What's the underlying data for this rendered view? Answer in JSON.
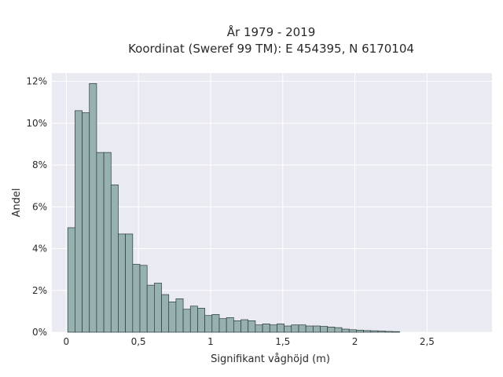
{
  "chart_data": {
    "type": "bar",
    "title": "År 1979 - 2019",
    "subtitle": "Koordinat (Sweref 99 TM): E 454395, N 6170104",
    "xlabel": "Signifikant våghöjd (m)",
    "ylabel": "Andel",
    "xlim": [
      -0.1,
      2.95
    ],
    "ylim": [
      0,
      12.4
    ],
    "x_ticks": [
      0,
      0.5,
      1,
      1.5,
      2,
      2.5
    ],
    "x_tick_labels": [
      "0",
      "0,5",
      "1",
      "1,5",
      "2",
      "2,5"
    ],
    "y_ticks": [
      0,
      2,
      4,
      6,
      8,
      10,
      12
    ],
    "y_tick_labels": [
      "0%",
      "2%",
      "4%",
      "6%",
      "8%",
      "10%",
      "12%"
    ],
    "bin_start": 0.01,
    "bin_width": 0.05,
    "values": [
      5.0,
      10.6,
      10.5,
      11.9,
      8.6,
      8.6,
      7.05,
      4.7,
      4.7,
      3.25,
      3.2,
      2.25,
      2.35,
      1.8,
      1.45,
      1.6,
      1.1,
      1.25,
      1.15,
      0.8,
      0.85,
      0.65,
      0.7,
      0.55,
      0.6,
      0.55,
      0.35,
      0.4,
      0.35,
      0.4,
      0.3,
      0.35,
      0.35,
      0.3,
      0.3,
      0.28,
      0.25,
      0.22,
      0.15,
      0.12,
      0.1,
      0.08,
      0.07,
      0.06,
      0.04,
      0.03
    ],
    "grid": true,
    "colors": {
      "bar_fill": "#97b1b1",
      "bar_edge": "#2b3a3a",
      "plot_bg": "#eaeaf2",
      "grid": "#ffffff"
    }
  }
}
